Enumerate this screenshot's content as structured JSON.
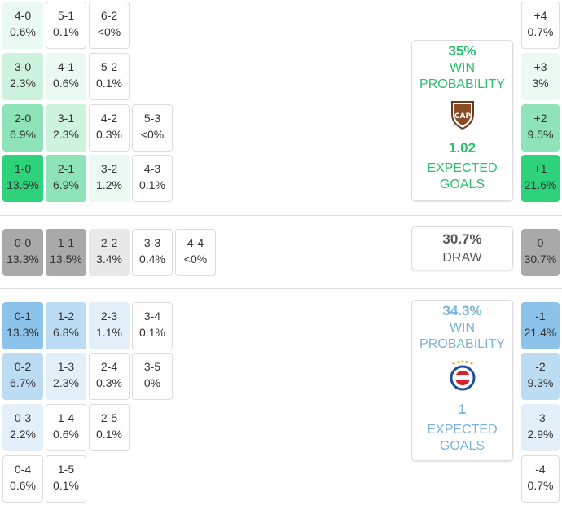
{
  "colors": {
    "green_dark": "#2dd27a",
    "green_mid": "#8fe3b8",
    "green_light": "#cdf2de",
    "green_pale": "#eaf9f1",
    "green_text": "#27c26c",
    "gray_dark": "#a9a9a9",
    "gray_light": "#e8e8e8",
    "blue_dark": "#8cc3ea",
    "blue_mid": "#bcdcf3",
    "blue_light": "#e3f0fa",
    "blue_text": "#7ab3dd"
  },
  "home": {
    "grid": [
      [
        {
          "score": "4-0",
          "pct": "0.6%",
          "tone": "green_pale"
        },
        {
          "score": "5-1",
          "pct": "0.1%",
          "tone": "none"
        },
        {
          "score": "6-2",
          "pct": "<0%",
          "tone": "none"
        }
      ],
      [
        {
          "score": "3-0",
          "pct": "2.3%",
          "tone": "green_light"
        },
        {
          "score": "4-1",
          "pct": "0.6%",
          "tone": "green_pale"
        },
        {
          "score": "5-2",
          "pct": "0.1%",
          "tone": "none"
        }
      ],
      [
        {
          "score": "2-0",
          "pct": "6.9%",
          "tone": "green_mid"
        },
        {
          "score": "3-1",
          "pct": "2.3%",
          "tone": "green_light"
        },
        {
          "score": "4-2",
          "pct": "0.3%",
          "tone": "none"
        },
        {
          "score": "5-3",
          "pct": "<0%",
          "tone": "none"
        }
      ],
      [
        {
          "score": "1-0",
          "pct": "13.5%",
          "tone": "green_dark"
        },
        {
          "score": "2-1",
          "pct": "6.9%",
          "tone": "green_mid"
        },
        {
          "score": "3-2",
          "pct": "1.2%",
          "tone": "green_pale"
        },
        {
          "score": "4-3",
          "pct": "0.1%",
          "tone": "none"
        }
      ]
    ],
    "card": {
      "win_pct": "35%",
      "win_label": "WIN\nPROBABILITY",
      "xg": "1.02",
      "xg_label": "EXPECTED\nGOALS",
      "logo": "platense-crest-icon",
      "logo_text": "CAP"
    },
    "margins": [
      {
        "label": "+4",
        "pct": "0.7%",
        "tone": "none"
      },
      {
        "label": "+3",
        "pct": "3%",
        "tone": "green_pale"
      },
      {
        "label": "+2",
        "pct": "9.5%",
        "tone": "green_mid"
      },
      {
        "label": "+1",
        "pct": "21.6%",
        "tone": "green_dark"
      }
    ]
  },
  "draw": {
    "row": [
      {
        "score": "0-0",
        "pct": "13.3%",
        "tone": "gray_dark"
      },
      {
        "score": "1-1",
        "pct": "13.5%",
        "tone": "gray_dark"
      },
      {
        "score": "2-2",
        "pct": "3.4%",
        "tone": "gray_light"
      },
      {
        "score": "3-3",
        "pct": "0.4%",
        "tone": "none"
      },
      {
        "score": "4-4",
        "pct": "<0%",
        "tone": "none"
      }
    ],
    "card": {
      "pct": "30.7%",
      "label": "DRAW"
    },
    "margin": {
      "label": "0",
      "pct": "30.7%",
      "tone": "gray_dark"
    }
  },
  "away": {
    "grid": [
      [
        {
          "score": "0-1",
          "pct": "13.3%",
          "tone": "blue_dark"
        },
        {
          "score": "1-2",
          "pct": "6.8%",
          "tone": "blue_mid"
        },
        {
          "score": "2-3",
          "pct": "1.1%",
          "tone": "blue_light"
        },
        {
          "score": "3-4",
          "pct": "0.1%",
          "tone": "none"
        }
      ],
      [
        {
          "score": "0-2",
          "pct": "6.7%",
          "tone": "blue_mid"
        },
        {
          "score": "1-3",
          "pct": "2.3%",
          "tone": "blue_light"
        },
        {
          "score": "2-4",
          "pct": "0.3%",
          "tone": "none"
        },
        {
          "score": "3-5",
          "pct": "0%",
          "tone": "none"
        }
      ],
      [
        {
          "score": "0-3",
          "pct": "2.2%",
          "tone": "blue_light"
        },
        {
          "score": "1-4",
          "pct": "0.6%",
          "tone": "none"
        },
        {
          "score": "2-5",
          "pct": "0.1%",
          "tone": "none"
        }
      ],
      [
        {
          "score": "0-4",
          "pct": "0.6%",
          "tone": "none"
        },
        {
          "score": "1-5",
          "pct": "0.1%",
          "tone": "none"
        }
      ]
    ],
    "card": {
      "win_pct": "34.3%",
      "win_label": "WIN\nPROBABILITY",
      "xg": "1",
      "xg_label": "EXPECTED\nGOALS",
      "logo": "argentinos-crest-icon"
    },
    "margins": [
      {
        "label": "-1",
        "pct": "21.4%",
        "tone": "blue_dark"
      },
      {
        "label": "-2",
        "pct": "9.3%",
        "tone": "blue_mid"
      },
      {
        "label": "-3",
        "pct": "2.9%",
        "tone": "blue_light"
      },
      {
        "label": "-4",
        "pct": "0.7%",
        "tone": "none"
      }
    ]
  }
}
